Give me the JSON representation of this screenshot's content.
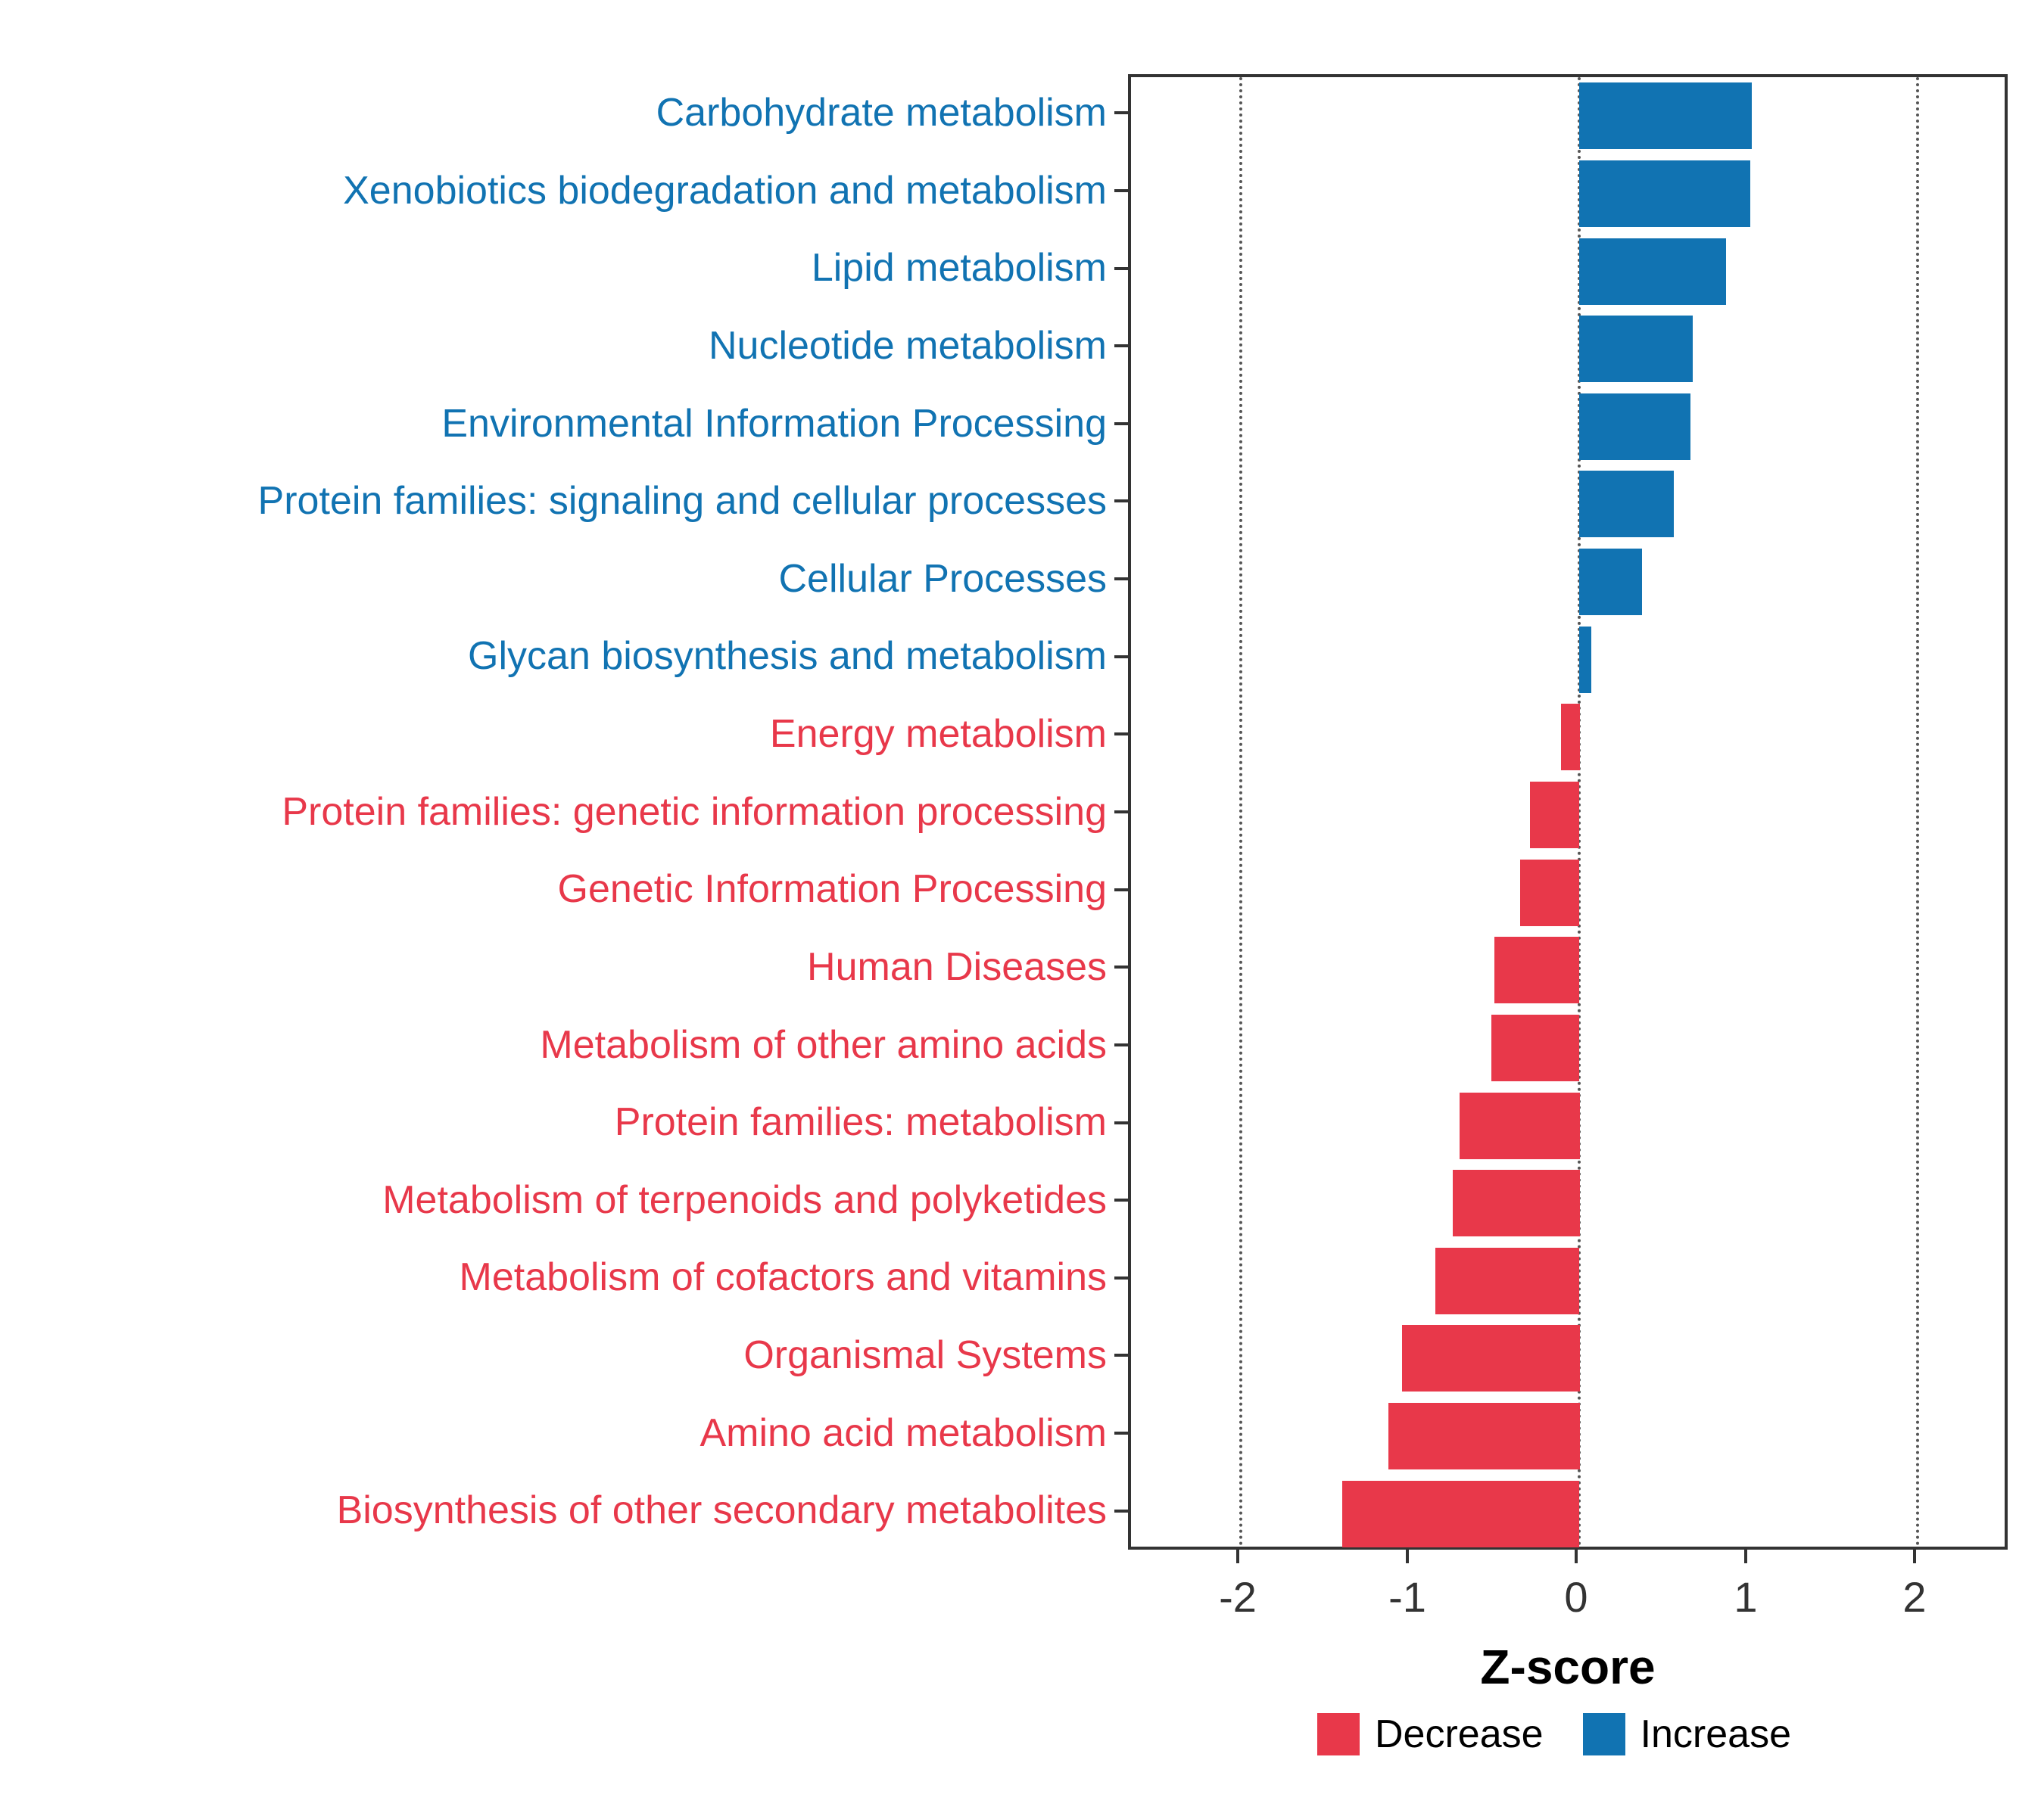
{
  "chart_data": {
    "type": "bar",
    "orientation": "horizontal",
    "title": "",
    "xlabel": "Z-score",
    "xlim": [
      -2.65,
      2.55
    ],
    "x_ticks": [
      -2,
      -1,
      0,
      1,
      2
    ],
    "x_tick_labels": [
      "-2",
      "-1",
      "0",
      "1",
      "2"
    ],
    "gridlines_at": [
      -2,
      0,
      2
    ],
    "grid_style": "dotted",
    "colors": {
      "Increase": "#1173B2",
      "Decrease": "#E8384A"
    },
    "bars": [
      {
        "label": "Carbohydrate metabolism",
        "value": 1.02,
        "group": "Increase"
      },
      {
        "label": "Xenobiotics biodegradation and metabolism",
        "value": 1.01,
        "group": "Increase"
      },
      {
        "label": "Lipid metabolism",
        "value": 0.87,
        "group": "Increase"
      },
      {
        "label": "Nucleotide metabolism",
        "value": 0.67,
        "group": "Increase"
      },
      {
        "label": "Environmental Information Processing",
        "value": 0.66,
        "group": "Increase"
      },
      {
        "label": "Protein families: signaling and cellular processes",
        "value": 0.56,
        "group": "Increase"
      },
      {
        "label": "Cellular Processes",
        "value": 0.37,
        "group": "Increase"
      },
      {
        "label": "Glycan biosynthesis and metabolism",
        "value": 0.07,
        "group": "Increase"
      },
      {
        "label": "Energy metabolism",
        "value": -0.11,
        "group": "Decrease"
      },
      {
        "label": "Protein families: genetic information processing",
        "value": -0.29,
        "group": "Decrease"
      },
      {
        "label": "Genetic Information Processing",
        "value": -0.35,
        "group": "Decrease"
      },
      {
        "label": "Human Diseases",
        "value": -0.5,
        "group": "Decrease"
      },
      {
        "label": "Metabolism of other amino acids",
        "value": -0.52,
        "group": "Decrease"
      },
      {
        "label": "Protein families: metabolism",
        "value": -0.71,
        "group": "Decrease"
      },
      {
        "label": "Metabolism of terpenoids and polyketides",
        "value": -0.75,
        "group": "Decrease"
      },
      {
        "label": "Metabolism of cofactors and vitamins",
        "value": -0.85,
        "group": "Decrease"
      },
      {
        "label": "Organismal Systems",
        "value": -1.05,
        "group": "Decrease"
      },
      {
        "label": "Amino acid metabolism",
        "value": -1.13,
        "group": "Decrease"
      },
      {
        "label": "Biosynthesis of other secondary metabolites",
        "value": -1.4,
        "group": "Decrease"
      }
    ],
    "legend": {
      "position": "bottom-right",
      "items": [
        {
          "label": "Decrease",
          "group": "Decrease"
        },
        {
          "label": "Increase",
          "group": "Increase"
        }
      ]
    }
  }
}
